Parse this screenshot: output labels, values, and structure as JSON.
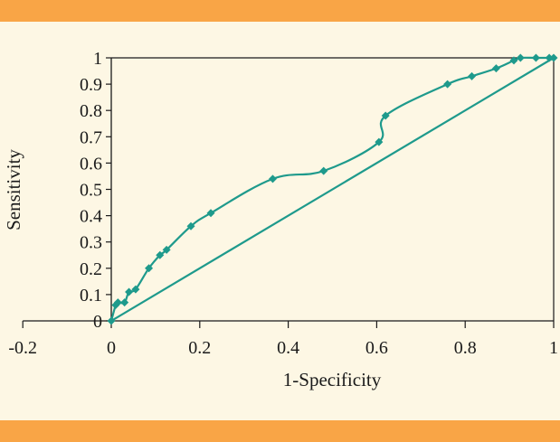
{
  "colors": {
    "band": "#f9a546",
    "background": "#fdf7e4",
    "series": "#1e9a8c",
    "axis": "#1a1a1a"
  },
  "chart_data": {
    "type": "line",
    "title": "",
    "xlabel": "1-Specificity",
    "ylabel": "Sensitivity",
    "xlim": [
      -0.2,
      1
    ],
    "ylim": [
      0,
      1
    ],
    "x_ticks": [
      -0.2,
      0,
      0.2,
      0.4,
      0.6,
      0.8,
      1
    ],
    "x_tick_labels": [
      "-0.2",
      "0",
      "0.2",
      "0.4",
      "0.6",
      "0.8",
      "1"
    ],
    "y_ticks": [
      0,
      0.1,
      0.2,
      0.3,
      0.4,
      0.5,
      0.6,
      0.7,
      0.8,
      0.9,
      1
    ],
    "y_tick_labels": [
      "0",
      "0.1",
      "0.2",
      "0.3",
      "0.4",
      "0.5",
      "0.6",
      "0.7",
      "0.8",
      "0.9",
      "1"
    ],
    "series": [
      {
        "name": "ROC curve",
        "markers": "diamond",
        "x": [
          0,
          0.01,
          0.015,
          0.03,
          0.04,
          0.055,
          0.085,
          0.11,
          0.125,
          0.18,
          0.225,
          0.365,
          0.48,
          0.605,
          0.62,
          0.76,
          0.815,
          0.87,
          0.91,
          0.925,
          0.96,
          0.99,
          1
        ],
        "y": [
          0,
          0.06,
          0.07,
          0.07,
          0.11,
          0.12,
          0.2,
          0.25,
          0.27,
          0.36,
          0.41,
          0.54,
          0.57,
          0.68,
          0.78,
          0.9,
          0.93,
          0.96,
          0.99,
          1,
          1,
          1,
          1
        ]
      },
      {
        "name": "Reference line",
        "markers": "none",
        "x": [
          0,
          1
        ],
        "y": [
          0,
          1
        ]
      }
    ]
  }
}
